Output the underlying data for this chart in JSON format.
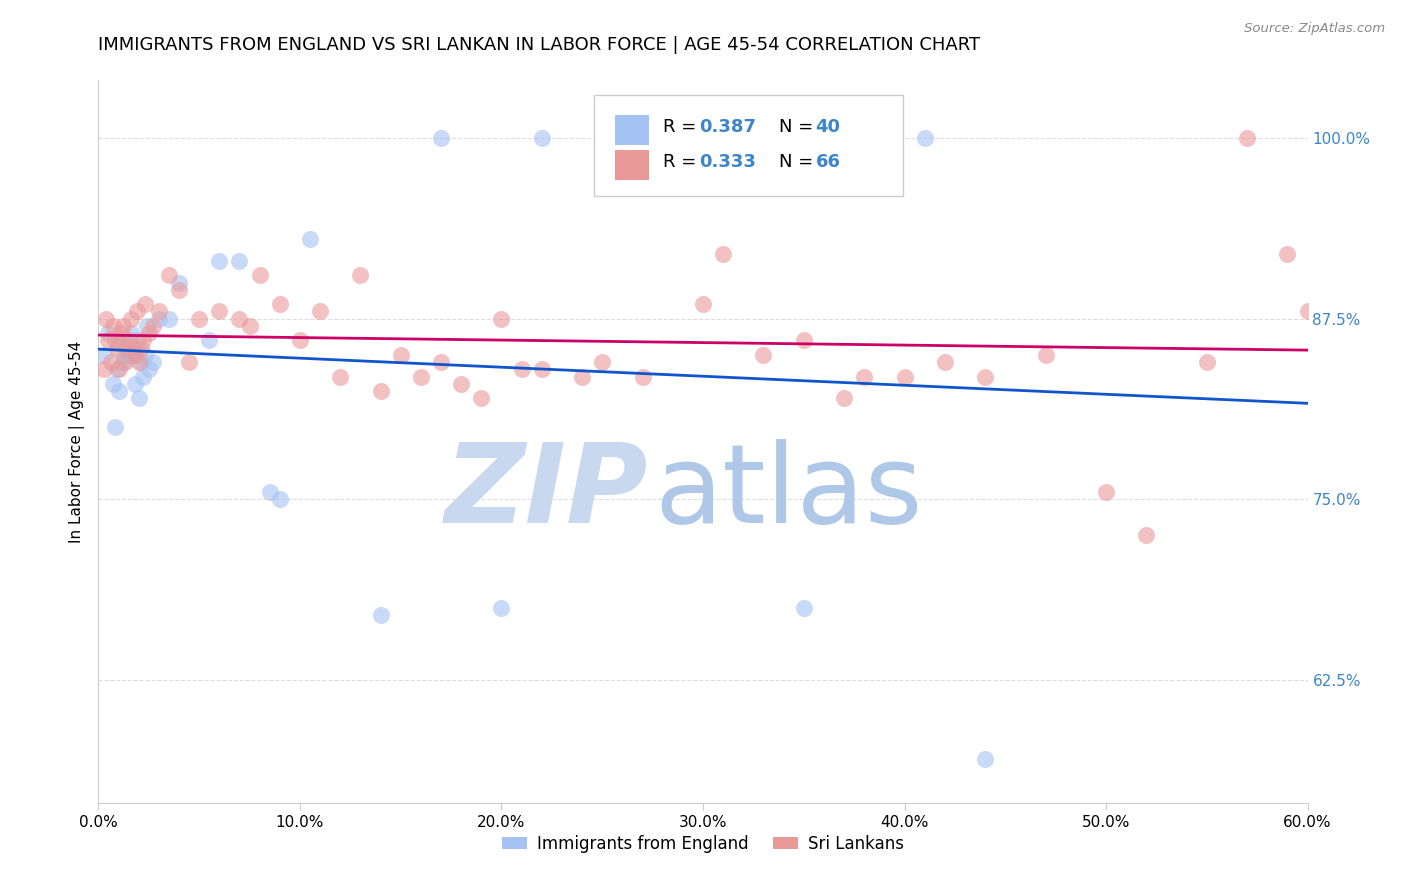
{
  "title": "IMMIGRANTS FROM ENGLAND VS SRI LANKAN IN LABOR FORCE | AGE 45-54 CORRELATION CHART",
  "source": "Source: ZipAtlas.com",
  "xlabel_vals": [
    0.0,
    10.0,
    20.0,
    30.0,
    40.0,
    50.0,
    60.0
  ],
  "ylabel_vals": [
    100.0,
    87.5,
    75.0,
    62.5
  ],
  "xlim": [
    0.0,
    60.0
  ],
  "ylim": [
    54.0,
    104.0
  ],
  "R_england": 0.387,
  "N_england": 40,
  "R_srilanka": 0.333,
  "N_srilanka": 66,
  "england_color": "#a4c2f4",
  "srilanka_color": "#ea9999",
  "england_line_color": "#1155cc",
  "srilanka_line_color": "#cc0066",
  "england_x": [
    0.3,
    0.5,
    0.7,
    0.8,
    0.9,
    1.0,
    1.1,
    1.2,
    1.3,
    1.4,
    1.5,
    1.6,
    1.7,
    1.8,
    1.9,
    2.0,
    2.1,
    2.2,
    2.3,
    2.4,
    2.5,
    2.7,
    3.0,
    3.5,
    4.0,
    5.5,
    6.0,
    7.0,
    8.5,
    9.0,
    10.5,
    14.0,
    17.0,
    20.0,
    22.0,
    26.0,
    30.0,
    35.0,
    41.0,
    44.0
  ],
  "england_y": [
    85.0,
    86.5,
    83.0,
    80.0,
    84.0,
    82.5,
    86.0,
    84.5,
    85.0,
    85.5,
    85.0,
    86.5,
    85.0,
    83.0,
    86.0,
    82.0,
    84.5,
    83.5,
    85.0,
    87.0,
    84.0,
    84.5,
    87.5,
    87.5,
    90.0,
    86.0,
    91.5,
    91.5,
    75.5,
    75.0,
    93.0,
    67.0,
    100.0,
    67.5,
    100.0,
    100.0,
    100.0,
    67.5,
    100.0,
    57.0
  ],
  "srilanka_x": [
    0.3,
    0.4,
    0.5,
    0.6,
    0.7,
    0.8,
    0.9,
    1.0,
    1.1,
    1.2,
    1.3,
    1.4,
    1.5,
    1.6,
    1.7,
    1.8,
    1.9,
    2.0,
    2.1,
    2.2,
    2.3,
    2.5,
    2.7,
    3.0,
    3.5,
    4.0,
    4.5,
    5.0,
    6.0,
    7.0,
    7.5,
    8.0,
    9.0,
    10.0,
    11.0,
    12.0,
    13.0,
    14.0,
    15.0,
    16.0,
    17.0,
    18.0,
    19.0,
    20.0,
    21.0,
    22.0,
    24.0,
    25.0,
    27.0,
    28.0,
    30.0,
    31.0,
    33.0,
    35.0,
    37.0,
    38.0,
    40.0,
    42.0,
    44.0,
    47.0,
    50.0,
    52.0,
    55.0,
    57.0,
    59.0,
    60.0
  ],
  "srilanka_y": [
    84.0,
    87.5,
    86.0,
    84.5,
    87.0,
    86.0,
    85.5,
    84.0,
    86.5,
    87.0,
    84.5,
    85.5,
    86.0,
    87.5,
    85.5,
    85.0,
    88.0,
    84.5,
    85.5,
    86.0,
    88.5,
    86.5,
    87.0,
    88.0,
    90.5,
    89.5,
    84.5,
    87.5,
    88.0,
    87.5,
    87.0,
    90.5,
    88.5,
    86.0,
    88.0,
    83.5,
    90.5,
    82.5,
    85.0,
    83.5,
    84.5,
    83.0,
    82.0,
    87.5,
    84.0,
    84.0,
    83.5,
    84.5,
    83.5,
    100.0,
    88.5,
    92.0,
    85.0,
    86.0,
    82.0,
    83.5,
    83.5,
    84.5,
    83.5,
    85.0,
    75.5,
    72.5,
    84.5,
    100.0,
    92.0,
    88.0
  ],
  "watermark_zip_color": "#c8d8ee",
  "watermark_atlas_color": "#b0c8e8",
  "ylabel_label": "In Labor Force | Age 45-54",
  "legend_label_england": "Immigrants from England",
  "legend_label_srilanka": "Sri Lankans",
  "ylabel_color": "#3d85c8",
  "background_color": "#ffffff",
  "grid_color": "#dddddd",
  "title_fontsize": 13,
  "tick_fontsize": 11,
  "ylabel_fontsize": 11
}
